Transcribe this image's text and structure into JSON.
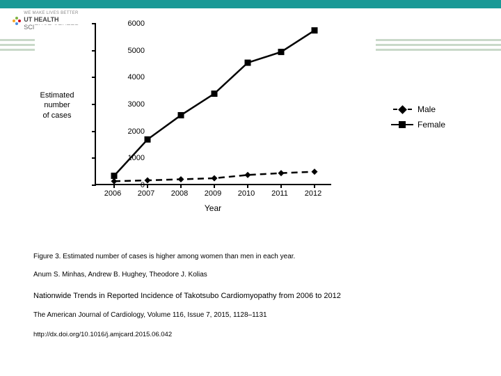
{
  "logo": {
    "line1": "WE MAKE LIVES BETTER",
    "line2": "UT HEALTH",
    "line3": "SCIENCE CENTER"
  },
  "chart": {
    "type": "line",
    "x_categories": [
      "2006",
      "2007",
      "2008",
      "2009",
      "2010",
      "2011",
      "2012"
    ],
    "y_ticks": [
      0,
      1000,
      2000,
      3000,
      4000,
      5000,
      6000
    ],
    "ylim": [
      0,
      6000
    ],
    "x_axis_title": "Year",
    "y_axis_title_line1": "Estimated",
    "y_axis_title_line2": "number",
    "y_axis_title_line3": "of cases",
    "series": [
      {
        "name": "Male",
        "marker": "diamond",
        "dash": true,
        "values": [
          150,
          180,
          220,
          260,
          380,
          450,
          500
        ]
      },
      {
        "name": "Female",
        "marker": "square",
        "dash": false,
        "values": [
          350,
          1700,
          2600,
          3400,
          4550,
          4950,
          5750
        ]
      }
    ],
    "line_color": "#000000",
    "line_width": 2.5,
    "marker_size": 9,
    "background_color": "#ffffff",
    "tick_fontsize": 11,
    "axis_title_fontsize": 12
  },
  "legend": {
    "items": [
      {
        "label": "Male",
        "marker": "diamond",
        "dash": true
      },
      {
        "label": "Female",
        "marker": "square",
        "dash": false
      }
    ]
  },
  "captions": {
    "fig": "Figure 3. Estimated number of cases is higher among women than men in each year.",
    "authors": "Anum S. Minhas,  Andrew B. Hughey,  Theodore J. Kolias",
    "title": "Nationwide Trends in Reported Incidence of Takotsubo Cardiomyopathy from 2006 to 2012",
    "journal": "The American Journal of Cardiology, Volume 116, Issue 7, 2015, 1128–1131",
    "doi": "http://dx.doi.org/10.1016/j.amjcard.2015.06.042"
  }
}
